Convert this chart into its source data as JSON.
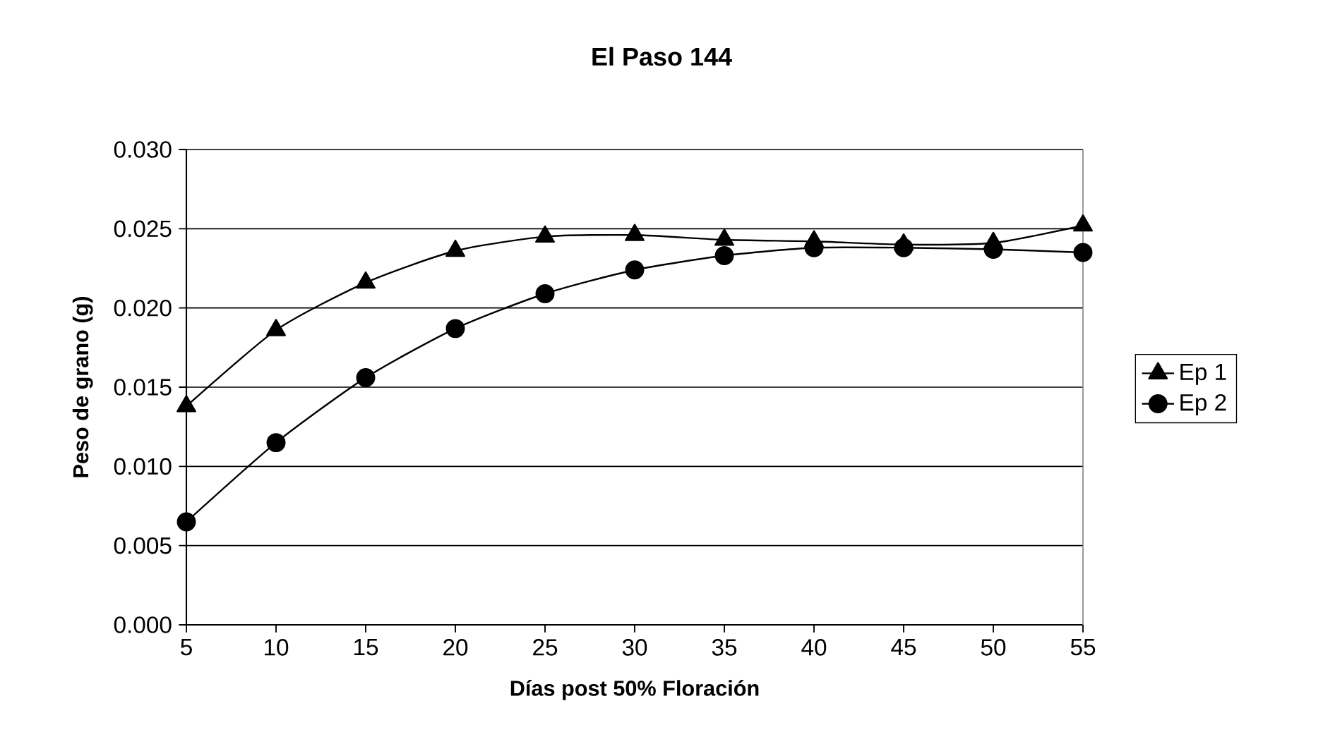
{
  "chart_data": {
    "type": "line",
    "title": "El Paso 144",
    "xlabel": "Días post 50% Floración",
    "ylabel": "Peso de grano (g)",
    "categories": [
      "5",
      "10",
      "15",
      "20",
      "25",
      "30",
      "35",
      "40",
      "45",
      "50",
      "55"
    ],
    "series": [
      {
        "name": "Ep 1",
        "color": "#000000",
        "marker": "triangle",
        "values": [
          0.0138,
          0.0186,
          0.0216,
          0.0236,
          0.0245,
          0.0246,
          0.0243,
          0.0242,
          0.024,
          0.0241,
          0.0252
        ]
      },
      {
        "name": "Ep 2",
        "color": "#000000",
        "marker": "circle",
        "values": [
          0.0065,
          0.0115,
          0.0156,
          0.0187,
          0.0209,
          0.0224,
          0.0233,
          0.0238,
          0.0238,
          0.0237,
          0.0235
        ]
      }
    ],
    "ylim": [
      0,
      0.03
    ],
    "yticks": [
      {
        "value": 0,
        "label": "0.000"
      },
      {
        "value": 0.005,
        "label": "0.005"
      },
      {
        "value": 0.01,
        "label": "0.010"
      },
      {
        "value": 0.015,
        "label": "0.015"
      },
      {
        "value": 0.02,
        "label": "0.020"
      },
      {
        "value": 0.025,
        "label": "0.025"
      },
      {
        "value": 0.03,
        "label": "0.030"
      }
    ],
    "grid": "y",
    "legend": "right",
    "line_style": "solid"
  }
}
